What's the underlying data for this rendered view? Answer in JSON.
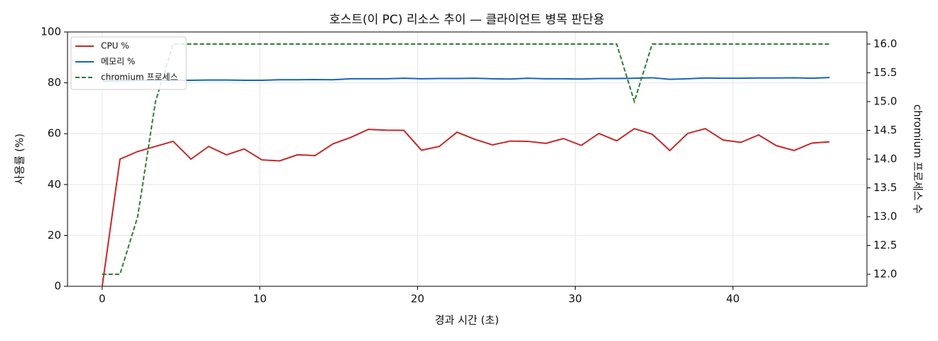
{
  "chart_data": {
    "type": "line",
    "title": "호스트(이 PC) 리소스 추이 — 클라이언트 병목 판단용",
    "xlabel": "경과 시간 (초)",
    "ylabel": "사용률 (%)",
    "y2label": "chromium 프로세스 수",
    "x": [
      0,
      1.13,
      2.25,
      3.38,
      4.5,
      5.63,
      6.75,
      7.88,
      9,
      10.13,
      11.25,
      12.38,
      13.5,
      14.63,
      15.75,
      16.88,
      18,
      19.13,
      20.25,
      21.38,
      22.5,
      23.63,
      24.75,
      25.88,
      27,
      28.13,
      29.25,
      30.38,
      31.5,
      32.63,
      33.75,
      34.88,
      36,
      37.13,
      38.25,
      39.38,
      40.5,
      41.63,
      42.75,
      43.88,
      45,
      46.13
    ],
    "series": [
      {
        "name": "CPU %",
        "color": "#c62828",
        "values": [
          0,
          50,
          53,
          55,
          57,
          50,
          55,
          51.7,
          54,
          49.7,
          49.3,
          51.7,
          51.4,
          56,
          58.5,
          61.7,
          61.4,
          61.3,
          53.5,
          55,
          60.6,
          57.8,
          55.6,
          57.1,
          57,
          56.2,
          58.1,
          55.4,
          60.1,
          57.2,
          62,
          59.8,
          53.4,
          60.1,
          62,
          57.5,
          56.6,
          59.5,
          55.3,
          53.4,
          56.3,
          56.8
        ]
      },
      {
        "name": "메모리 %",
        "color": "#1565c0",
        "values": [
          80.6,
          80.8,
          80.9,
          81.0,
          81.0,
          81.0,
          81.1,
          81.1,
          81.0,
          81.0,
          81.2,
          81.2,
          81.3,
          81.2,
          81.6,
          81.6,
          81.6,
          81.8,
          81.6,
          81.7,
          81.7,
          81.8,
          81.6,
          81.5,
          81.8,
          81.6,
          81.6,
          81.5,
          81.7,
          81.7,
          81.8,
          82.0,
          81.4,
          81.6,
          81.9,
          81.8,
          81.8,
          81.9,
          81.9,
          82.0,
          81.8,
          82.1
        ]
      },
      {
        "name": "chromium 프로세스",
        "color": "#2e7d32",
        "axis": "y2",
        "dashed": true,
        "values": [
          12,
          12,
          13,
          15,
          16,
          16,
          16,
          16,
          16,
          16,
          16,
          16,
          16,
          16,
          16,
          16,
          16,
          16,
          16,
          16,
          16,
          16,
          16,
          16,
          16,
          16,
          16,
          16,
          16,
          16,
          15,
          16,
          16,
          16,
          16,
          16,
          16,
          16,
          16,
          16,
          16,
          16
        ]
      }
    ],
    "xlim": [
      -2.2,
      48.5
    ],
    "xticks": [
      0,
      10,
      20,
      30,
      40
    ],
    "ylim": [
      0,
      100
    ],
    "yticks": [
      0,
      20,
      40,
      60,
      80,
      100
    ],
    "y2lim": [
      11.79,
      16.21
    ],
    "y2ticks": [
      {
        "value": 12,
        "label": "12.0"
      },
      {
        "value": 12.5,
        "label": "12.5"
      },
      {
        "value": 13,
        "label": "13.0"
      },
      {
        "value": 13.5,
        "label": "13.5"
      },
      {
        "value": 14,
        "label": "14.0"
      },
      {
        "value": 14.5,
        "label": "14.5"
      },
      {
        "value": 15,
        "label": "15.0"
      },
      {
        "value": 15.5,
        "label": "15.5"
      },
      {
        "value": 16,
        "label": "16.0"
      }
    ],
    "grid": true,
    "legend": "upper-left"
  }
}
